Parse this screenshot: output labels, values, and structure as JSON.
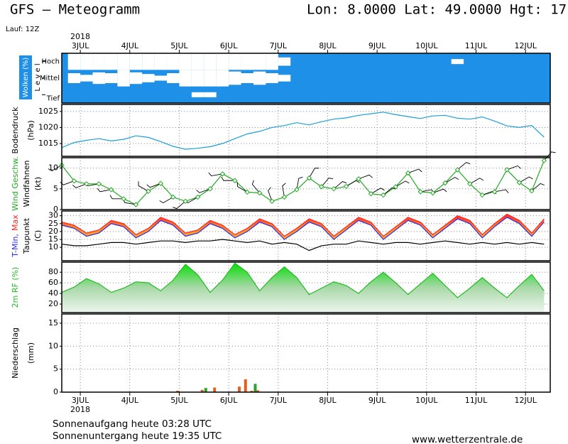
{
  "chart_data": {
    "type": "meteogram",
    "title": "GFS – Meteogramm",
    "location": "Lon: 8.0000 Lat: 49.0000 Hgt: 17",
    "run": "Lauf: 12Z",
    "year": "2018",
    "sunrise": "Sonnenaufgang heute 03:28 UTC",
    "sunset": "Sonnenuntergang heute 19:35 UTC",
    "source": "www.wetterzentrale.de",
    "xlim": [
      -9,
      228
    ],
    "xticks": [
      {
        "value": 0,
        "label": "3JUL"
      },
      {
        "value": 24,
        "label": "4JUL"
      },
      {
        "value": 48,
        "label": "5JUL"
      },
      {
        "value": 72,
        "label": "6JUL"
      },
      {
        "value": 96,
        "label": "7JUL"
      },
      {
        "value": 120,
        "label": "8JUL"
      },
      {
        "value": 144,
        "label": "9JUL"
      },
      {
        "value": 168,
        "label": "10JUL"
      },
      {
        "value": 192,
        "label": "11JUL"
      },
      {
        "value": 216,
        "label": "12JUL"
      }
    ],
    "x": [
      -9,
      -3,
      3,
      9,
      15,
      21,
      27,
      33,
      39,
      45,
      51,
      57,
      63,
      69,
      75,
      81,
      87,
      93,
      99,
      105,
      111,
      117,
      123,
      129,
      135,
      141,
      147,
      153,
      159,
      165,
      171,
      177,
      183,
      189,
      195,
      201,
      207,
      213,
      219,
      225
    ],
    "panels": [
      {
        "type": "clouds",
        "ylabel": [
          "Wolken (%)",
          "L e v e l"
        ],
        "background": "#1e90e8",
        "grid": false,
        "series": [
          {
            "name": "Hoch",
            "color": "#ffffff",
            "values": [
              0,
              100,
              100,
              100,
              100,
              100,
              100,
              100,
              100,
              100,
              100,
              100,
              100,
              100,
              100,
              100,
              100,
              100,
              50,
              0,
              0,
              0,
              0,
              0,
              0,
              0,
              0,
              0,
              0,
              0,
              0,
              0,
              30,
              0,
              0,
              0,
              0,
              0,
              0,
              0
            ]
          },
          {
            "name": "Mittel",
            "color": "#ffffff",
            "values": [
              0,
              60,
              40,
              70,
              60,
              100,
              70,
              50,
              30,
              60,
              100,
              100,
              100,
              100,
              80,
              60,
              80,
              60,
              40,
              0,
              0,
              0,
              0,
              0,
              0,
              0,
              0,
              0,
              0,
              0,
              0,
              0,
              0,
              0,
              0,
              0,
              0,
              0,
              0,
              0
            ]
          },
          {
            "name": "Tief",
            "color": "#ffffff",
            "values": [
              0,
              0,
              0,
              0,
              0,
              0,
              0,
              0,
              0,
              0,
              0,
              30,
              30,
              0,
              0,
              0,
              0,
              0,
              0,
              0,
              0,
              0,
              0,
              0,
              0,
              0,
              0,
              0,
              0,
              0,
              0,
              0,
              0,
              0,
              0,
              0,
              0,
              0,
              0,
              0
            ]
          }
        ]
      },
      {
        "type": "line",
        "ylabel": [
          "Bodendruck",
          "(hPa)"
        ],
        "ylim": [
          1011,
          1027.2
        ],
        "yticks": [
          1015,
          1020,
          1025
        ],
        "grid": true,
        "series": [
          {
            "color": "#1a9fd8",
            "values": [
              1013.7,
              1015.3,
              1016.0,
              1016.5,
              1015.8,
              1016.3,
              1017.4,
              1016.9,
              1015.6,
              1014.1,
              1013.2,
              1013.5,
              1014.0,
              1015.0,
              1016.5,
              1018.0,
              1018.8,
              1020.0,
              1020.6,
              1021.5,
              1020.8,
              1021.8,
              1022.6,
              1023.0,
              1023.8,
              1024.3,
              1024.8,
              1024.0,
              1023.4,
              1022.8,
              1023.6,
              1023.8,
              1022.9,
              1022.6,
              1023.3,
              1022.0,
              1020.5,
              1020.0,
              1020.6,
              1017.0
            ]
          }
        ]
      },
      {
        "type": "line",
        "ylabel": [
          "Windfahnen",
          "(kt)"
        ],
        "ylim": [
          0,
          12.5
        ],
        "yticks": [
          0,
          5,
          10
        ],
        "grid": true,
        "markers": true,
        "series": [
          {
            "name": "Wind Geschw.",
            "color": "#22aa22",
            "values": [
              10.7,
              6.9,
              6.2,
              6.2,
              4.8,
              2.6,
              1.2,
              4.4,
              6.3,
              3.0,
              2.0,
              3.0,
              5.0,
              8.6,
              7.0,
              4.2,
              4.0,
              2.0,
              3.0,
              4.8,
              7.6,
              5.5,
              5.0,
              5.6,
              7.4,
              3.8,
              3.5,
              5.5,
              8.8,
              4.3,
              4.0,
              6.4,
              9.6,
              6.2,
              3.5,
              4.3,
              9.6,
              6.5,
              4.5,
              11.8
            ]
          }
        ],
        "direction": [
          240,
          250,
          250,
          260,
          260,
          270,
          280,
          300,
          250,
          240,
          230,
          240,
          250,
          260,
          270,
          300,
          320,
          340,
          350,
          10,
          30,
          40,
          50,
          60,
          70,
          60,
          50,
          60,
          70,
          80,
          70,
          60,
          50,
          60,
          70,
          80,
          70,
          60,
          50,
          40
        ]
      },
      {
        "type": "band",
        "ylabel": [
          "(C)"
        ],
        "ylim": [
          1.5,
          33
        ],
        "yticks": [
          10,
          15,
          20,
          25,
          30
        ],
        "grid": true,
        "series": [
          {
            "name": "T-Min,",
            "color": "#2828ff",
            "values": [
              24,
              22,
              17,
              19,
              25,
              23,
              16,
              20,
              27,
              24,
              17,
              19,
              25,
              22,
              16,
              20,
              26,
              23,
              15,
              20,
              26,
              23,
              15,
              21,
              27,
              24,
              15,
              21,
              27,
              24,
              16,
              22,
              28,
              25,
              16,
              23,
              29,
              25,
              17,
              26
            ]
          },
          {
            "name": "Max",
            "color": "#ff2020",
            "values": [
              26,
              24,
              19,
              21,
              27,
              25,
              18,
              22,
              29,
              26,
              19,
              21,
              27,
              24,
              18,
              22,
              28,
              25,
              17,
              22,
              28,
              25,
              17,
              23,
              29,
              26,
              17,
              23,
              29,
              26,
              18,
              24,
              30,
              27,
              18,
              25,
              31,
              27,
              19,
              28
            ]
          },
          {
            "name": "Taupunkt",
            "color": "#000000",
            "values": [
              12,
              11,
              11,
              12,
              13,
              13,
              12,
              13,
              14,
              14,
              13,
              14,
              14,
              15,
              14,
              13,
              14,
              12,
              13,
              12,
              8,
              11,
              12,
              12,
              14,
              13,
              12,
              13,
              13,
              12,
              13,
              14,
              13,
              12,
              13,
              12,
              13,
              12,
              13,
              12
            ]
          }
        ]
      },
      {
        "type": "area",
        "ylim": [
          4,
          99
        ],
        "yticks": [
          20,
          40,
          60,
          80
        ],
        "grid": true,
        "series": [
          {
            "name": "2m RF (%)",
            "color": "#22bb22",
            "values": [
              42,
              52,
              68,
              58,
              42,
              50,
              62,
              60,
              45,
              65,
              95,
              75,
              42,
              65,
              97,
              80,
              45,
              70,
              90,
              70,
              38,
              50,
              62,
              55,
              40,
              62,
              80,
              60,
              38,
              58,
              78,
              55,
              32,
              50,
              70,
              50,
              32,
              55,
              76,
              45
            ]
          }
        ]
      },
      {
        "type": "bar",
        "ylabel": [
          "Niederschlag",
          "(mm)"
        ],
        "ylim": [
          0,
          17
        ],
        "yticks": [
          0,
          5,
          10,
          15
        ],
        "grid": true,
        "x": [
          48,
          60,
          66,
          78,
          81,
          84,
          87
        ],
        "series": [
          {
            "color": "#e06020",
            "values": [
              0.3,
              0.5,
              1.0,
              1.2,
              2.8,
              0.3,
              0.4
            ]
          },
          {
            "color": "#30a030",
            "values": [
              0,
              0.9,
              0,
              0,
              0,
              1.8,
              0
            ]
          }
        ]
      }
    ]
  }
}
